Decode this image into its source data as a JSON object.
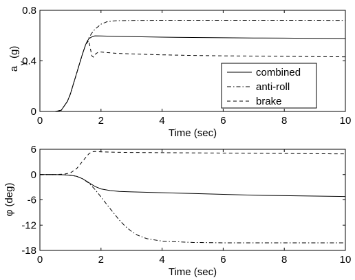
{
  "chart_data": [
    {
      "type": "line",
      "xlabel": "Time (sec)",
      "ylabel_main": "a",
      "ylabel_sub": "y",
      "ylabel_unit": "(g)",
      "xlim": [
        0,
        10
      ],
      "ylim": [
        0,
        0.8
      ],
      "xticks": [
        "0",
        "2",
        "4",
        "6",
        "8",
        "10"
      ],
      "xtick_values": [
        0,
        2,
        4,
        6,
        8,
        10
      ],
      "yticks": [
        "0",
        "0.4",
        "0.8"
      ],
      "ytick_values": [
        0,
        0.4,
        0.8
      ],
      "grid": false,
      "legend_position": "lower-right",
      "series": [
        {
          "name": "combined",
          "style": "solid",
          "x": [
            0,
            0.5,
            0.7,
            0.9,
            1.0,
            1.1,
            1.2,
            1.3,
            1.4,
            1.5,
            1.6,
            1.7,
            1.8,
            2.0,
            2.5,
            3.0,
            4.0,
            5.0,
            6.0,
            7.0,
            8.0,
            9.0,
            10.0
          ],
          "y": [
            0,
            0,
            0.01,
            0.08,
            0.14,
            0.22,
            0.3,
            0.38,
            0.46,
            0.53,
            0.575,
            0.59,
            0.598,
            0.597,
            0.594,
            0.592,
            0.588,
            0.585,
            0.583,
            0.581,
            0.58,
            0.578,
            0.577
          ]
        },
        {
          "name": "anti-roll",
          "style": "dashdot",
          "x": [
            0,
            0.5,
            0.7,
            0.9,
            1.0,
            1.1,
            1.2,
            1.3,
            1.4,
            1.5,
            1.6,
            1.7,
            1.8,
            2.0,
            2.2,
            2.5,
            3.0,
            4.0,
            5.0,
            6.0,
            7.0,
            8.0,
            9.0,
            10.0
          ],
          "y": [
            0,
            0,
            0.01,
            0.08,
            0.14,
            0.22,
            0.3,
            0.38,
            0.46,
            0.53,
            0.58,
            0.62,
            0.65,
            0.69,
            0.71,
            0.718,
            0.72,
            0.721,
            0.721,
            0.721,
            0.721,
            0.721,
            0.721,
            0.72
          ]
        },
        {
          "name": "brake",
          "style": "dashed",
          "x": [
            0,
            0.5,
            0.7,
            0.9,
            1.0,
            1.1,
            1.2,
            1.3,
            1.4,
            1.5,
            1.6,
            1.65,
            1.7,
            1.75,
            1.8,
            1.9,
            2.0,
            2.5,
            3.0,
            4.0,
            5.0,
            6.0,
            7.0,
            8.0,
            9.0,
            10.0
          ],
          "y": [
            0,
            0,
            0.01,
            0.08,
            0.14,
            0.22,
            0.3,
            0.38,
            0.46,
            0.53,
            0.56,
            0.5,
            0.44,
            0.43,
            0.45,
            0.468,
            0.47,
            0.46,
            0.455,
            0.448,
            0.443,
            0.44,
            0.438,
            0.436,
            0.434,
            0.432
          ]
        }
      ]
    },
    {
      "type": "line",
      "xlabel": "Time (sec)",
      "ylabel": "φ (deg)",
      "xlim": [
        0,
        10
      ],
      "ylim": [
        -18,
        6
      ],
      "xticks": [
        "0",
        "2",
        "4",
        "6",
        "8",
        "10"
      ],
      "xtick_values": [
        0,
        2,
        4,
        6,
        8,
        10
      ],
      "yticks": [
        "-18",
        "-12",
        "-6",
        "0",
        "6"
      ],
      "ytick_values": [
        -18,
        -12,
        -6,
        0,
        6
      ],
      "grid": false,
      "series": [
        {
          "name": "combined",
          "style": "solid",
          "x": [
            0,
            0.5,
            0.8,
            1.0,
            1.2,
            1.4,
            1.6,
            1.8,
            2.0,
            2.3,
            2.6,
            3.0,
            4.0,
            5.0,
            6.0,
            7.0,
            8.0,
            9.0,
            10.0
          ],
          "y": [
            0,
            0,
            -0.05,
            -0.15,
            -0.4,
            -1.0,
            -1.9,
            -2.8,
            -3.4,
            -3.8,
            -4.0,
            -4.1,
            -4.3,
            -4.5,
            -4.7,
            -4.9,
            -5.0,
            -5.1,
            -5.2
          ]
        },
        {
          "name": "anti-roll",
          "style": "dashdot",
          "x": [
            0,
            0.5,
            0.8,
            1.0,
            1.2,
            1.4,
            1.6,
            1.8,
            2.0,
            2.2,
            2.4,
            2.6,
            2.8,
            3.0,
            3.2,
            3.5,
            4.0,
            5.0,
            6.0,
            7.0,
            8.0,
            9.0,
            10.0
          ],
          "y": [
            0,
            0,
            -0.05,
            -0.15,
            -0.4,
            -1.0,
            -2.0,
            -3.5,
            -5.3,
            -7.2,
            -9.0,
            -10.8,
            -12.3,
            -13.5,
            -14.4,
            -15.2,
            -15.8,
            -16.1,
            -16.2,
            -16.2,
            -16.2,
            -16.2,
            -16.2
          ]
        },
        {
          "name": "brake",
          "style": "dashed",
          "x": [
            0,
            0.5,
            0.8,
            1.0,
            1.2,
            1.4,
            1.6,
            1.7,
            1.8,
            2.0,
            2.5,
            3.0,
            4.0,
            5.0,
            6.0,
            7.0,
            8.0,
            9.0,
            10.0
          ],
          "y": [
            0,
            0,
            0.1,
            0.4,
            1.4,
            3.2,
            4.9,
            5.4,
            5.5,
            5.4,
            5.3,
            5.25,
            5.2,
            5.15,
            5.1,
            5.05,
            5.0,
            4.95,
            4.9
          ]
        }
      ]
    }
  ]
}
